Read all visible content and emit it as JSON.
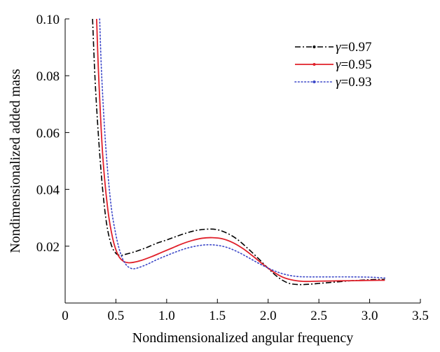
{
  "chart_data": {
    "type": "line",
    "title": "",
    "xlabel": "Nondimensionalized angular frequency",
    "ylabel": "Nondimensionalized added mass",
    "xlim": [
      0,
      3.5
    ],
    "ylim": [
      0,
      0.1
    ],
    "x_ticks": [
      "0",
      "0.5",
      "1.0",
      "1.5",
      "2.0",
      "2.5",
      "3.0",
      "3.5"
    ],
    "x_tick_values": [
      0,
      0.5,
      1.0,
      1.5,
      2.0,
      2.5,
      3.0,
      3.5
    ],
    "y_ticks": [
      "0.02",
      "0.04",
      "0.06",
      "0.08",
      "0.10"
    ],
    "y_tick_values": [
      0.02,
      0.04,
      0.06,
      0.08,
      0.1
    ],
    "grid": false,
    "legend_position": "top-right",
    "series": [
      {
        "name": "γ=0.97",
        "gamma_symbol": "γ",
        "gamma_value": "=0.97",
        "color": "#000000",
        "style": "dashdot",
        "x": [
          0.27,
          0.3,
          0.35,
          0.4,
          0.45,
          0.5,
          0.55,
          0.6,
          0.7,
          0.8,
          0.9,
          1.0,
          1.1,
          1.2,
          1.3,
          1.4,
          1.5,
          1.6,
          1.7,
          1.8,
          1.9,
          2.0,
          2.1,
          2.2,
          2.3,
          2.4,
          2.5,
          2.6,
          2.7,
          2.8,
          2.9,
          3.0,
          3.1,
          3.15
        ],
        "y": [
          0.1,
          0.075,
          0.048,
          0.03,
          0.021,
          0.0175,
          0.0168,
          0.0172,
          0.0182,
          0.0195,
          0.021,
          0.0222,
          0.0235,
          0.0247,
          0.0256,
          0.026,
          0.0258,
          0.0245,
          0.0223,
          0.0192,
          0.0158,
          0.0122,
          0.009,
          0.007,
          0.0065,
          0.0066,
          0.0069,
          0.0072,
          0.0075,
          0.0078,
          0.008,
          0.0082,
          0.0083,
          0.0083
        ]
      },
      {
        "name": "γ=0.95",
        "gamma_symbol": "γ",
        "gamma_value": "=0.95",
        "color": "#e0202a",
        "style": "solid",
        "x": [
          0.31,
          0.33,
          0.37,
          0.42,
          0.47,
          0.52,
          0.57,
          0.62,
          0.67,
          0.75,
          0.85,
          0.95,
          1.05,
          1.15,
          1.25,
          1.35,
          1.45,
          1.55,
          1.65,
          1.75,
          1.85,
          1.95,
          2.05,
          2.15,
          2.25,
          2.35,
          2.5,
          2.7,
          2.9,
          3.1,
          3.15
        ],
        "y": [
          0.1,
          0.08,
          0.052,
          0.033,
          0.0225,
          0.017,
          0.0148,
          0.0142,
          0.0143,
          0.015,
          0.0163,
          0.0178,
          0.0193,
          0.0208,
          0.022,
          0.0228,
          0.023,
          0.0226,
          0.0213,
          0.0192,
          0.0165,
          0.0136,
          0.011,
          0.009,
          0.008,
          0.0076,
          0.0077,
          0.0078,
          0.0079,
          0.008,
          0.008
        ]
      },
      {
        "name": "γ=0.93",
        "gamma_symbol": "γ",
        "gamma_value": "=0.93",
        "color": "#3a46c8",
        "style": "dotted",
        "x": [
          0.34,
          0.36,
          0.4,
          0.45,
          0.5,
          0.55,
          0.6,
          0.65,
          0.7,
          0.8,
          0.9,
          1.0,
          1.1,
          1.2,
          1.3,
          1.4,
          1.5,
          1.6,
          1.7,
          1.8,
          1.9,
          2.0,
          2.1,
          2.2,
          2.3,
          2.4,
          2.6,
          2.8,
          3.0,
          3.15
        ],
        "y": [
          0.1,
          0.08,
          0.055,
          0.035,
          0.024,
          0.017,
          0.0135,
          0.0122,
          0.0122,
          0.0135,
          0.0152,
          0.0167,
          0.0181,
          0.0193,
          0.0201,
          0.0205,
          0.0203,
          0.0195,
          0.018,
          0.0161,
          0.0141,
          0.0123,
          0.0108,
          0.0098,
          0.0093,
          0.0092,
          0.0092,
          0.0092,
          0.0091,
          0.0088
        ]
      }
    ]
  }
}
